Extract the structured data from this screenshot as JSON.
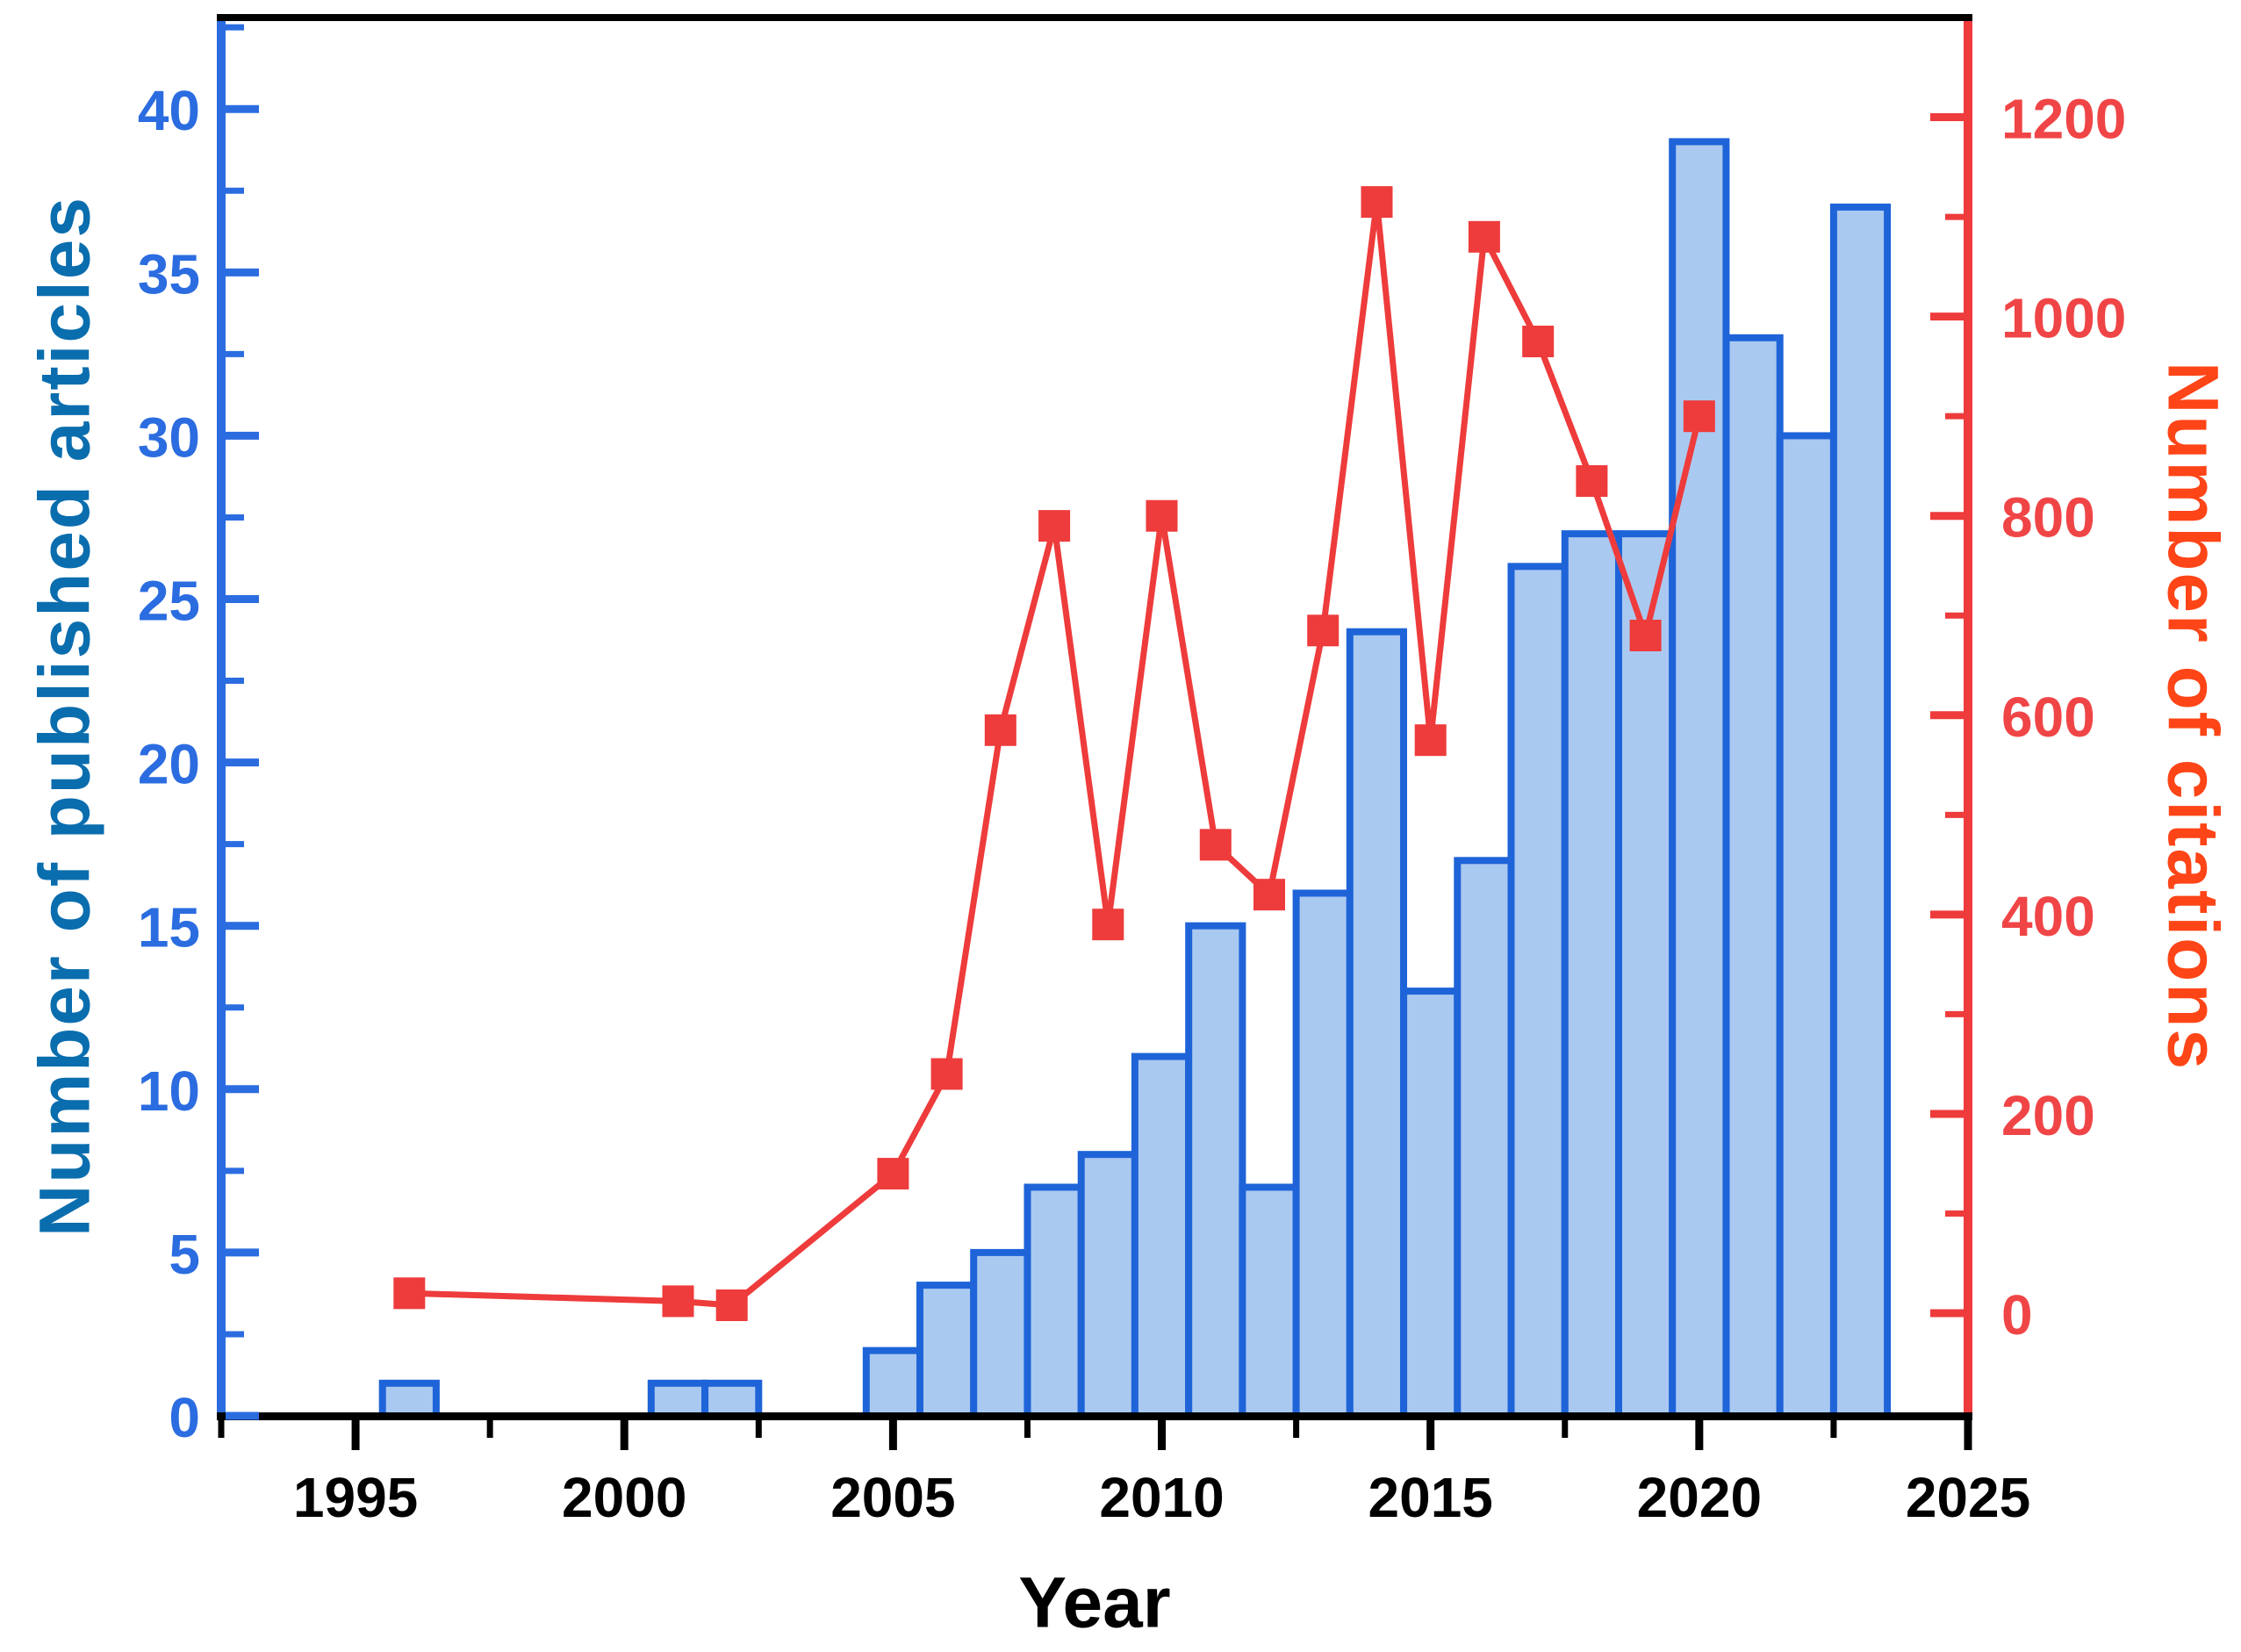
{
  "chart_data": {
    "type": "bar+line",
    "title": "",
    "xlabel": "Year",
    "x_major_ticks": [
      1995,
      2000,
      2005,
      2010,
      2015,
      2020,
      2025
    ],
    "x_minor_ticks": [
      1992.5,
      1997.5,
      2002.5,
      2007.5,
      2012.5,
      2017.5,
      2022.5
    ],
    "xlim": [
      1992.5,
      2025
    ],
    "grid": "off",
    "legend": "none",
    "background": "#ffffff",
    "axis_line_color": "#000000",
    "left_axis": {
      "label": "Number of published articles",
      "major_ticks": [
        0,
        5,
        10,
        15,
        20,
        25,
        30,
        35,
        40
      ],
      "minor_ticks": [
        2.5,
        7.5,
        12.5,
        17.5,
        22.5,
        27.5,
        32.5,
        37.5,
        42.5
      ],
      "range": [
        0,
        42.8
      ],
      "spine_color": "#2b6ce0",
      "tick_label_color": "#2b6ce0",
      "title_color": "#0a6dae"
    },
    "right_axis": {
      "label": "Number of citations",
      "major_ticks": [
        0,
        200,
        400,
        600,
        800,
        1000,
        1200
      ],
      "minor_ticks": [
        100,
        300,
        500,
        700,
        900,
        1100
      ],
      "range": [
        -103,
        1300
      ],
      "spine_color": "#ee3b3b",
      "tick_label_color": "#f04546",
      "title_color": "#fe4517"
    },
    "series": [
      {
        "name": "Number of published articles",
        "type": "bar",
        "axis": "left",
        "fill": "#aac9f1",
        "edge": "#1e64d8",
        "points": [
          [
            1996,
            1
          ],
          [
            2001,
            1
          ],
          [
            2002,
            1
          ],
          [
            2005,
            2
          ],
          [
            2006,
            4
          ],
          [
            2007,
            5
          ],
          [
            2008,
            7
          ],
          [
            2009,
            8
          ],
          [
            2010,
            11
          ],
          [
            2011,
            15
          ],
          [
            2012,
            7
          ],
          [
            2013,
            16
          ],
          [
            2014,
            24
          ],
          [
            2015,
            13
          ],
          [
            2016,
            17
          ],
          [
            2017,
            26
          ],
          [
            2018,
            27
          ],
          [
            2019,
            27
          ],
          [
            2020,
            39
          ],
          [
            2021,
            33
          ],
          [
            2022,
            30
          ],
          [
            2023,
            37
          ]
        ]
      },
      {
        "name": "Number of citations",
        "type": "line",
        "axis": "right",
        "color": "#ee3b3b",
        "marker": "square",
        "points": [
          [
            1996,
            20
          ],
          [
            2001,
            12
          ],
          [
            2002,
            8
          ],
          [
            2005,
            140
          ],
          [
            2006,
            240
          ],
          [
            2007,
            585
          ],
          [
            2008,
            790
          ],
          [
            2009,
            390
          ],
          [
            2010,
            800
          ],
          [
            2011,
            470
          ],
          [
            2012,
            420
          ],
          [
            2013,
            685
          ],
          [
            2014,
            1115
          ],
          [
            2015,
            575
          ],
          [
            2016,
            1080
          ],
          [
            2017,
            975
          ],
          [
            2018,
            835
          ],
          [
            2019,
            680
          ],
          [
            2020,
            900
          ]
        ]
      }
    ]
  }
}
